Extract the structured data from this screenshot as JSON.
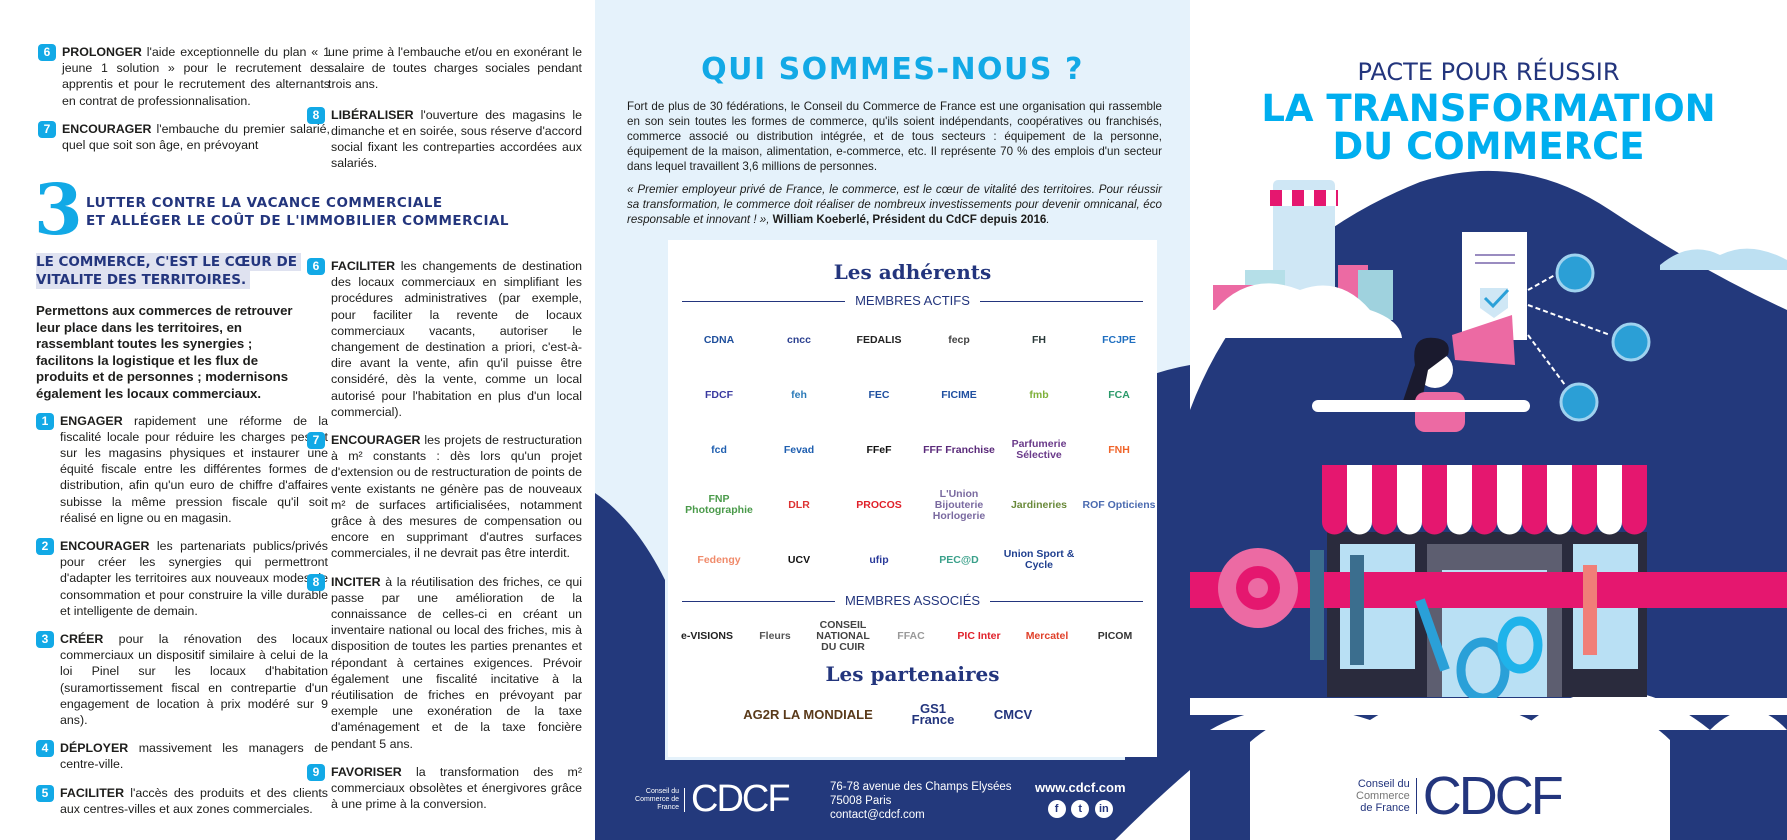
{
  "left": {
    "top_items": [
      {
        "num": "6",
        "verb": "PROLONGER",
        "text": " l'aide exceptionnelle du plan « 1 jeune 1 solution » pour le recrutement des apprentis et pour le recrutement des alternants en contrat de professionnalisation."
      },
      {
        "num": "7",
        "verb": "ENCOURAGER",
        "text": " l'embauche du premier salarié, quel que soit son âge, en prévoyant"
      },
      {
        "num": "8",
        "verb": "LIBÉRALISER",
        "text": " l'ouverture des magasins le dimanche et en soirée, sous réserve d'accord social fixant les contreparties accordées aux salariés."
      }
    ],
    "top_continuation": "une prime à l'embauche et/ou en exonérant le salaire de toutes charges sociales pendant trois ans.",
    "section3": {
      "number": "3",
      "title_line1": "LUTTER CONTRE LA VACANCE COMMERCIALE",
      "title_line2": "ET ALLÉGER LE COÛT DE L'IMMOBILIER COMMERCIAL",
      "highlight_line1": "LE COMMERCE, C'EST LE CŒUR DE",
      "highlight_line2": "VITALITE DES TERRITOIRES.",
      "lead": "Permettons aux commerces de retrouver leur place dans les territoires, en rassemblant toutes les synergies ; facilitons la logistique et les flux de produits et de personnes ; modernisons également les locaux commerciaux.",
      "items": [
        {
          "num": "1",
          "verb": "ENGAGER",
          "text": " rapidement une réforme de la fiscalité locale pour réduire les charges pesant sur les magasins physiques et instaurer une équité fiscale entre les différentes formes de distribution, afin qu'un euro de chiffre d'affaires subisse la même pression fiscale qu'il soit réalisé en ligne ou en magasin."
        },
        {
          "num": "2",
          "verb": "ENCOURAGER",
          "text": " les partenariats publics/privés pour créer les synergies qui permettront d'adapter les territoires aux nouveaux modes de consommation et pour construire la ville durable et intelligente de demain."
        },
        {
          "num": "3",
          "verb": "CRÉER",
          "text": " pour la rénovation des locaux commerciaux un dispositif similaire à celui de la loi Pinel sur les locaux d'habitation (suramortissement fiscal en contrepartie d'un engagement de location à prix modéré sur 9 ans)."
        },
        {
          "num": "4",
          "verb": "DÉPLOYER",
          "text": " massivement les managers de centre-ville."
        },
        {
          "num": "5",
          "verb": "FACILITER",
          "text": " l'accès des produits et des clients aux centres-villes et aux zones commerciales."
        },
        {
          "num": "6",
          "verb": "FACILITER",
          "text": " les changements de destination des locaux commerciaux en simplifiant les procédures administratives (par exemple, pour faciliter la revente de locaux commerciaux vacants, autoriser le changement de destination a priori, c'est-à-dire avant la vente, afin qu'il puisse être considéré, dès la vente, comme un local autorisé pour l'habitation en plus d'un local commercial)."
        },
        {
          "num": "7",
          "verb": "ENCOURAGER",
          "text": " les projets de restructuration à m² constants : dès lors qu'un projet d'extension ou de restructuration de points de vente existants ne génère pas de nouveaux m² de surfaces artificialisées, notamment grâce à des mesures de compensation ou encore en supprimant d'autres surfaces commerciales, il ne devrait pas être interdit."
        },
        {
          "num": "8",
          "verb": "INCITER",
          "text": " à la réutilisation des friches, ce qui passe par une amélioration de la connaissance de celles-ci en créant un inventaire national ou local des friches, mis à disposition de toutes les parties prenantes et répondant à certaines exigences. Prévoir également une fiscalité incitative à la réutilisation de friches en prévoyant par exemple une exonération de la taxe d'aménagement et de la taxe foncière pendant 5 ans."
        },
        {
          "num": "9",
          "verb": "FAVORISER",
          "text": " la transformation des m² commerciaux obsolètes et énergivores grâce à une prime à la conversion."
        }
      ]
    }
  },
  "middle": {
    "title": "QUI SOMMES-NOUS ?",
    "intro": "Fort de plus de 30 fédérations, le Conseil du Commerce de France est une organisation qui rassemble en son sein toutes les formes de commerce, qu'ils soient indépendants, coopératives ou franchisés, commerce associé ou distribution intégrée, et de tous secteurs : équipement de la personne, équipement de la maison, alimentation, e-commerce, etc. Il représente 70 % des emplois d'un secteur dans lequel travaillent 3,6 millions de personnes.",
    "quote": "« Premier employeur privé de France, le commerce, est le cœur de vitalité des territoires. Pour réussir sa transformation, le commerce doit réaliser de nombreux investissements pour devenir omnicanal, éco responsable et innovant ! », ",
    "quote_author": "William Koeberlé, Président du CdCF depuis 2016",
    "adherents_title": "Les adhérents",
    "membres_actifs_label": "MEMBRES ACTIFS",
    "membres_actifs": [
      {
        "name": "CDNA",
        "color": "#1f4f9c"
      },
      {
        "name": "cncc",
        "color": "#2a3f8f"
      },
      {
        "name": "FEDALIS",
        "color": "#222"
      },
      {
        "name": "fecp",
        "color": "#444"
      },
      {
        "name": "FH",
        "color": "#2b3a3a"
      },
      {
        "name": "FCJPE",
        "color": "#1f6fc0"
      },
      {
        "name": "FDCF",
        "color": "#3a3aa0"
      },
      {
        "name": "feh",
        "color": "#2b7ab8"
      },
      {
        "name": "FEC",
        "color": "#1f4fa0"
      },
      {
        "name": "FICIME",
        "color": "#1f4fa0"
      },
      {
        "name": "fmb",
        "color": "#7fb13a"
      },
      {
        "name": "FCA",
        "color": "#2a9a6a"
      },
      {
        "name": "fcd",
        "color": "#1f5fb0"
      },
      {
        "name": "Fevad",
        "color": "#1f5fb0"
      },
      {
        "name": "FFeF",
        "color": "#111"
      },
      {
        "name": "FFF Franchise",
        "color": "#5a2a7a"
      },
      {
        "name": "Parfumerie Sélective",
        "color": "#6a3a8a"
      },
      {
        "name": "FNH",
        "color": "#f0642a"
      },
      {
        "name": "FNP Photographie",
        "color": "#4a9a4a"
      },
      {
        "name": "DLR",
        "color": "#d33"
      },
      {
        "name": "PROCOS",
        "color": "#e0202a"
      },
      {
        "name": "L'Union Bijouterie Horlogerie",
        "color": "#7a6aa0"
      },
      {
        "name": "Jardineries",
        "color": "#6a8a3a"
      },
      {
        "name": "ROF Opticiens",
        "color": "#4a6ab0"
      },
      {
        "name": "Fedengy",
        "color": "#f08a6a"
      },
      {
        "name": "UCV",
        "color": "#111"
      },
      {
        "name": "ufip",
        "color": "#2a3a9a"
      },
      {
        "name": "PEC@D",
        "color": "#3aa08a"
      },
      {
        "name": "Union Sport & Cycle",
        "color": "#1f3f8f"
      }
    ],
    "membres_associes_label": "MEMBRES ASSOCIÉS",
    "membres_associes": [
      {
        "name": "e-VISIONS",
        "color": "#222"
      },
      {
        "name": "Fleurs",
        "color": "#555"
      },
      {
        "name": "CONSEIL NATIONAL DU CUIR",
        "color": "#444"
      },
      {
        "name": "FFAC",
        "color": "#999"
      },
      {
        "name": "PIC Inter",
        "color": "#e0202a"
      },
      {
        "name": "Mercatel",
        "color": "#e0402a"
      },
      {
        "name": "PICOM",
        "color": "#333"
      }
    ],
    "partenaires_title": "Les partenaires",
    "partenaires": [
      {
        "name": "AG2R LA MONDIALE",
        "color": "#5a3a1a"
      },
      {
        "name": "GS1 France",
        "color": "#23357d"
      },
      {
        "name": "CMCV",
        "color": "#23357d"
      }
    ],
    "footer": {
      "logo_small": "Conseil du Commerce de France",
      "logo_big": "CDCF",
      "address_line1": "76-78 avenue des Champs Elysées",
      "address_line2": "75008 Paris",
      "email": "contact@cdcf.com",
      "website": "www.cdcf.com",
      "social": [
        "f",
        "t",
        "in"
      ]
    }
  },
  "right": {
    "title_line1": "PACTE POUR RÉUSSIR",
    "title_line2": "LA TRANSFORMATION",
    "title_line3": "DU COMMERCE",
    "logo_small_1": "Conseil du",
    "logo_small_2": "Commerce",
    "logo_small_3": "de France",
    "logo_big": "CDCF"
  },
  "colors": {
    "navy": "#23397c",
    "cyan": "#12a9e6",
    "pink": "#e5176f",
    "light_blue": "#e5f2fb"
  }
}
